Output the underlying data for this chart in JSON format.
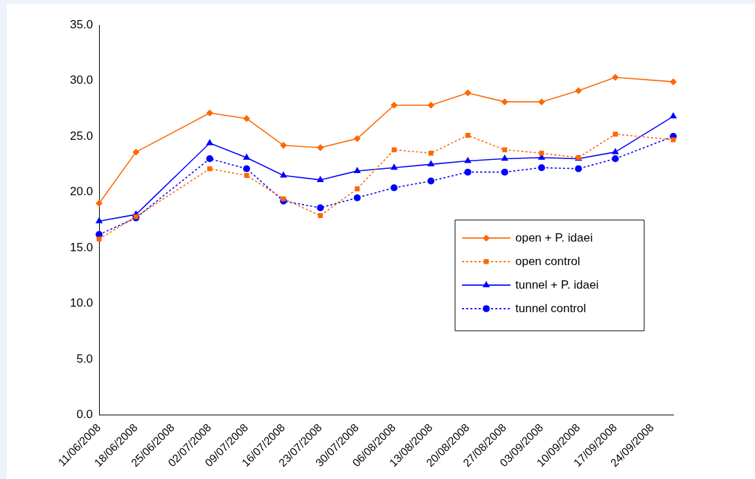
{
  "chart_data": {
    "type": "line",
    "x": [
      "2008-06-11",
      "2008-06-18",
      "2008-07-02",
      "2008-07-09",
      "2008-07-16",
      "2008-07-23",
      "2008-07-30",
      "2008-08-06",
      "2008-08-13",
      "2008-08-20",
      "2008-08-27",
      "2008-09-03",
      "2008-09-10",
      "2008-09-17",
      "2008-09-28"
    ],
    "xlim": [
      "2008-06-11",
      "2008-09-28"
    ],
    "xticks": [
      {
        "value": "2008-06-11",
        "label": "11/06/2008"
      },
      {
        "value": "2008-06-18",
        "label": "18/06/2008"
      },
      {
        "value": "2008-06-25",
        "label": "25/06/2008"
      },
      {
        "value": "2008-07-02",
        "label": "02/07/2008"
      },
      {
        "value": "2008-07-09",
        "label": "09/07/2008"
      },
      {
        "value": "2008-07-16",
        "label": "16/07/2008"
      },
      {
        "value": "2008-07-23",
        "label": "23/07/2008"
      },
      {
        "value": "2008-07-30",
        "label": "30/07/2008"
      },
      {
        "value": "2008-08-06",
        "label": "06/08/2008"
      },
      {
        "value": "2008-08-13",
        "label": "13/08/2008"
      },
      {
        "value": "2008-08-20",
        "label": "20/08/2008"
      },
      {
        "value": "2008-08-27",
        "label": "27/08/2008"
      },
      {
        "value": "2008-09-03",
        "label": "03/09/2008"
      },
      {
        "value": "2008-09-10",
        "label": "10/09/2008"
      },
      {
        "value": "2008-09-17",
        "label": "17/09/2008"
      },
      {
        "value": "2008-09-24",
        "label": "24/09/2008"
      }
    ],
    "ylim": [
      0,
      35
    ],
    "yticks": [
      {
        "value": 0,
        "label": "0.0"
      },
      {
        "value": 5,
        "label": "5.0"
      },
      {
        "value": 10,
        "label": "10.0"
      },
      {
        "value": 15,
        "label": "15.0"
      },
      {
        "value": 20,
        "label": "20.0"
      },
      {
        "value": 25,
        "label": "25.0"
      },
      {
        "value": 30,
        "label": "30.0"
      },
      {
        "value": 35,
        "label": "35.0"
      }
    ],
    "grid": false,
    "legend": "center right",
    "series": [
      {
        "name": "open + P. idaei",
        "color": "#ff6600",
        "marker": "diamond",
        "line_style": "solid",
        "values": [
          19.0,
          23.6,
          27.1,
          26.6,
          24.2,
          24.0,
          24.8,
          27.8,
          27.8,
          28.9,
          28.1,
          28.1,
          29.1,
          30.3,
          29.9
        ]
      },
      {
        "name": "open control",
        "color": "#ff6600",
        "marker": "square",
        "line_style": "dotted",
        "values": [
          15.8,
          17.8,
          22.1,
          21.5,
          19.4,
          17.9,
          20.3,
          23.8,
          23.5,
          25.1,
          23.8,
          23.5,
          23.1,
          25.2,
          24.7
        ]
      },
      {
        "name": "tunnel + P. idaei",
        "color": "#0000ff",
        "marker": "triangle",
        "line_style": "solid",
        "values": [
          17.4,
          18.0,
          24.4,
          23.1,
          21.5,
          21.1,
          21.9,
          22.2,
          22.5,
          22.8,
          23.0,
          23.1,
          23.0,
          23.6,
          26.8
        ]
      },
      {
        "name": "tunnel control",
        "color": "#0000ff",
        "marker": "circle",
        "line_style": "dotted",
        "values": [
          16.2,
          17.7,
          23.0,
          22.1,
          19.2,
          18.6,
          19.5,
          20.4,
          21.0,
          21.8,
          21.8,
          22.2,
          22.1,
          23.0,
          25.0
        ]
      }
    ]
  }
}
